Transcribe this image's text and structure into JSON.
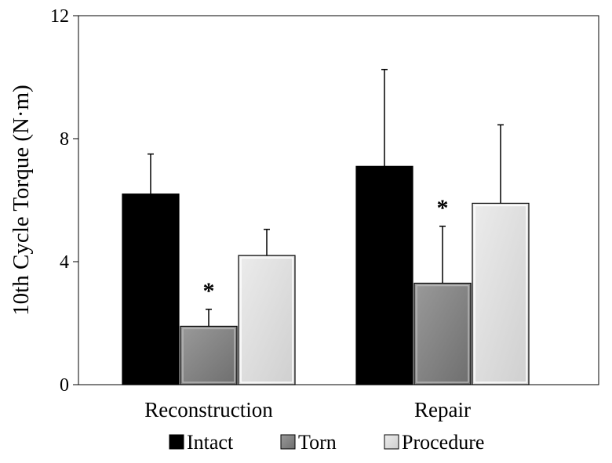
{
  "chart_data": {
    "type": "bar",
    "title": "",
    "xlabel": "",
    "ylabel": "10th Cycle Torque (N·m)",
    "ylim": [
      0,
      12
    ],
    "yticks": [
      "0",
      "4",
      "8",
      "12"
    ],
    "grid": false,
    "legend_position": "bottom",
    "categories": [
      "Reconstruction",
      "Repair"
    ],
    "series": [
      {
        "name": "Intact",
        "values": [
          6.2,
          7.1
        ],
        "errors": [
          1.3,
          3.15
        ],
        "color": "#000000"
      },
      {
        "name": "Torn",
        "values": [
          1.9,
          3.3
        ],
        "errors": [
          0.55,
          1.85
        ],
        "color": "#808080"
      },
      {
        "name": "Procedure",
        "values": [
          4.2,
          5.9
        ],
        "errors": [
          0.85,
          2.55
        ],
        "color": "#dcdcdc"
      }
    ],
    "annotations": [
      {
        "category": "Reconstruction",
        "series": "Torn",
        "text": "*"
      },
      {
        "category": "Repair",
        "series": "Torn",
        "text": "*"
      }
    ]
  }
}
